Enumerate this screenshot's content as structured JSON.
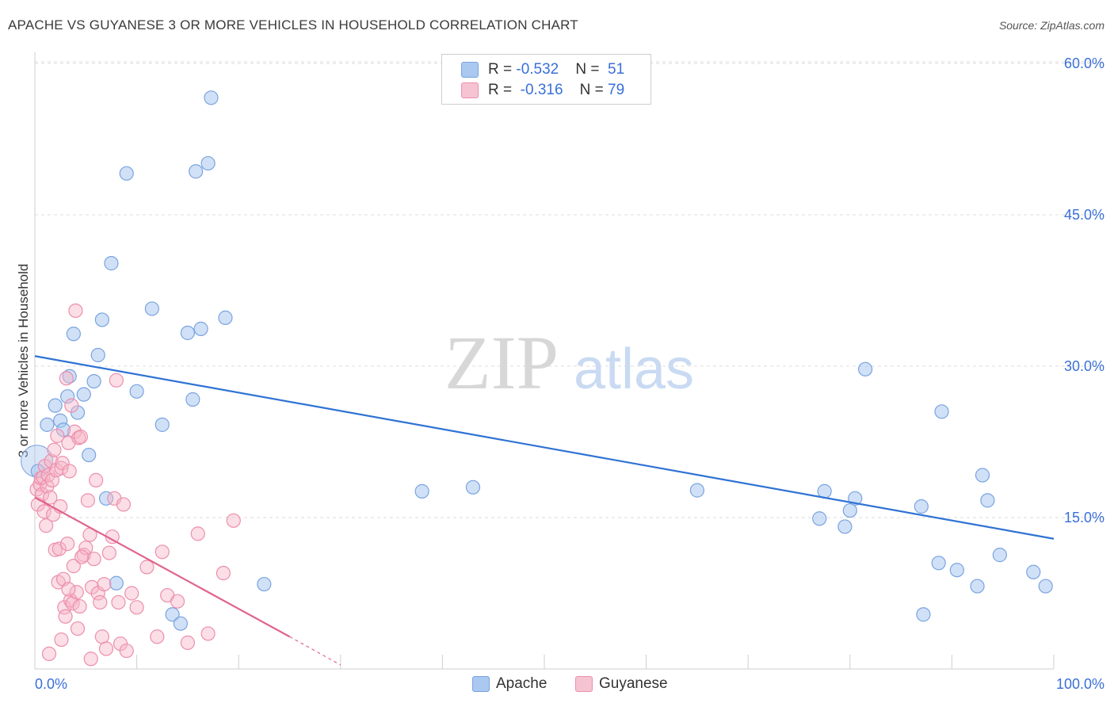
{
  "title": "APACHE VS GUYANESE 3 OR MORE VEHICLES IN HOUSEHOLD CORRELATION CHART",
  "source": "Source: ZipAtlas.com",
  "watermark": {
    "zip": "ZIP",
    "atlas": "atlas"
  },
  "legend": {
    "apache": {
      "r_label": "R = ",
      "r_value": "-0.532",
      "n_label": "N = ",
      "n_value": "51"
    },
    "guyanese": {
      "r_label": "R = ",
      "r_value": "-0.316",
      "n_label": "N = ",
      "n_value": "79"
    }
  },
  "colors": {
    "apache_fill": "#aac8f0",
    "apache_stroke": "#7aa3e0",
    "apache_line": "#2f72d4",
    "guyanese_fill": "#f6b6c8",
    "guyanese_stroke": "#ec8fad",
    "guyanese_line": "#e0648e",
    "tick_label": "#3a6fd8",
    "grid": "#dddddd"
  },
  "chart_data": {
    "type": "scatter",
    "title": "APACHE VS GUYANESE 3 OR MORE VEHICLES IN HOUSEHOLD CORRELATION CHART",
    "xlabel": "",
    "ylabel": "3 or more Vehicles in Household",
    "xlim": [
      0,
      100
    ],
    "ylim": [
      0,
      60
    ],
    "x_tick_labels": [
      "0.0%",
      "100.0%"
    ],
    "y_ticks": [
      15,
      30,
      45,
      60
    ],
    "y_tick_labels": [
      "15.0%",
      "30.0%",
      "45.0%",
      "60.0%"
    ],
    "series": [
      {
        "name": "Apache",
        "r": -0.532,
        "n": 51,
        "trend": {
          "x0": 0,
          "y0": 31.0,
          "x1": 100,
          "y1": 12.9
        },
        "points": [
          [
            0.3,
            19.6
          ],
          [
            1.2,
            24.2
          ],
          [
            2.0,
            26.1
          ],
          [
            2.5,
            24.6
          ],
          [
            2.8,
            23.7
          ],
          [
            3.2,
            27.0
          ],
          [
            3.4,
            29.0
          ],
          [
            3.8,
            33.2
          ],
          [
            4.2,
            25.4
          ],
          [
            4.8,
            27.2
          ],
          [
            5.3,
            21.2
          ],
          [
            5.8,
            28.5
          ],
          [
            6.2,
            31.1
          ],
          [
            6.6,
            34.6
          ],
          [
            7.0,
            16.9
          ],
          [
            7.5,
            40.2
          ],
          [
            8.0,
            8.5
          ],
          [
            9.0,
            49.1
          ],
          [
            10.0,
            27.5
          ],
          [
            11.5,
            35.7
          ],
          [
            12.5,
            24.2
          ],
          [
            13.5,
            5.4
          ],
          [
            14.3,
            4.5
          ],
          [
            15.0,
            33.3
          ],
          [
            15.5,
            26.7
          ],
          [
            15.8,
            49.3
          ],
          [
            16.3,
            33.7
          ],
          [
            17.0,
            50.1
          ],
          [
            17.3,
            56.6
          ],
          [
            18.7,
            34.8
          ],
          [
            22.5,
            8.4
          ],
          [
            38.0,
            17.6
          ],
          [
            43.0,
            18.0
          ],
          [
            65.0,
            17.7
          ],
          [
            77.0,
            14.9
          ],
          [
            77.5,
            17.6
          ],
          [
            79.5,
            14.1
          ],
          [
            80.0,
            15.7
          ],
          [
            80.5,
            16.9
          ],
          [
            81.5,
            29.7
          ],
          [
            87.0,
            16.1
          ],
          [
            87.2,
            5.4
          ],
          [
            88.7,
            10.5
          ],
          [
            89.0,
            25.5
          ],
          [
            90.5,
            9.8
          ],
          [
            92.5,
            8.2
          ],
          [
            93.0,
            19.2
          ],
          [
            93.5,
            16.7
          ],
          [
            94.7,
            11.3
          ],
          [
            98.0,
            9.6
          ],
          [
            99.2,
            8.2
          ]
        ]
      },
      {
        "name": "Guyanese",
        "r": -0.316,
        "n": 79,
        "trend": {
          "x0": 0,
          "y0": 17.0,
          "x1": 25,
          "y1": 3.2,
          "dash_to_x": 30,
          "dash_to_y": 0.4
        },
        "points": [
          [
            0.2,
            17.8
          ],
          [
            0.3,
            16.3
          ],
          [
            0.5,
            18.3
          ],
          [
            0.6,
            18.9
          ],
          [
            0.7,
            17.3
          ],
          [
            0.8,
            19.0
          ],
          [
            0.9,
            15.6
          ],
          [
            1.0,
            20.1
          ],
          [
            1.1,
            14.2
          ],
          [
            1.2,
            18.1
          ],
          [
            1.3,
            19.2
          ],
          [
            1.5,
            17.0
          ],
          [
            1.6,
            20.6
          ],
          [
            1.7,
            18.7
          ],
          [
            1.8,
            15.3
          ],
          [
            1.9,
            21.7
          ],
          [
            2.0,
            11.8
          ],
          [
            2.1,
            19.7
          ],
          [
            2.2,
            23.1
          ],
          [
            2.3,
            8.6
          ],
          [
            2.4,
            11.9
          ],
          [
            2.5,
            16.1
          ],
          [
            2.6,
            19.9
          ],
          [
            2.7,
            20.4
          ],
          [
            2.8,
            8.9
          ],
          [
            2.9,
            6.1
          ],
          [
            3.0,
            5.2
          ],
          [
            3.1,
            28.8
          ],
          [
            3.2,
            12.4
          ],
          [
            3.3,
            22.4
          ],
          [
            3.4,
            19.6
          ],
          [
            3.5,
            6.8
          ],
          [
            3.6,
            26.1
          ],
          [
            3.7,
            6.5
          ],
          [
            3.8,
            10.2
          ],
          [
            3.9,
            23.5
          ],
          [
            4.0,
            35.5
          ],
          [
            4.1,
            7.6
          ],
          [
            4.2,
            4.0
          ],
          [
            4.3,
            22.9
          ],
          [
            4.4,
            6.2
          ],
          [
            4.5,
            23.0
          ],
          [
            4.8,
            11.3
          ],
          [
            5.0,
            12.0
          ],
          [
            5.2,
            16.7
          ],
          [
            5.4,
            13.3
          ],
          [
            5.6,
            8.1
          ],
          [
            5.8,
            10.9
          ],
          [
            6.0,
            18.7
          ],
          [
            6.2,
            7.5
          ],
          [
            6.4,
            6.6
          ],
          [
            6.6,
            3.2
          ],
          [
            6.8,
            8.4
          ],
          [
            7.0,
            2.0
          ],
          [
            7.3,
            11.5
          ],
          [
            7.6,
            13.1
          ],
          [
            7.8,
            16.9
          ],
          [
            8.0,
            28.6
          ],
          [
            8.2,
            6.6
          ],
          [
            8.4,
            2.5
          ],
          [
            8.7,
            16.3
          ],
          [
            9.0,
            1.8
          ],
          [
            9.5,
            7.5
          ],
          [
            10.0,
            6.1
          ],
          [
            11.0,
            10.1
          ],
          [
            12.0,
            3.2
          ],
          [
            12.5,
            11.6
          ],
          [
            13.0,
            7.3
          ],
          [
            14.0,
            6.7
          ],
          [
            15.0,
            2.6
          ],
          [
            16.0,
            13.4
          ],
          [
            17.0,
            3.5
          ],
          [
            18.5,
            9.5
          ],
          [
            19.5,
            14.7
          ],
          [
            1.4,
            1.5
          ],
          [
            2.6,
            2.9
          ],
          [
            3.3,
            7.9
          ],
          [
            4.6,
            11.1
          ],
          [
            5.5,
            1.0
          ]
        ]
      }
    ]
  }
}
